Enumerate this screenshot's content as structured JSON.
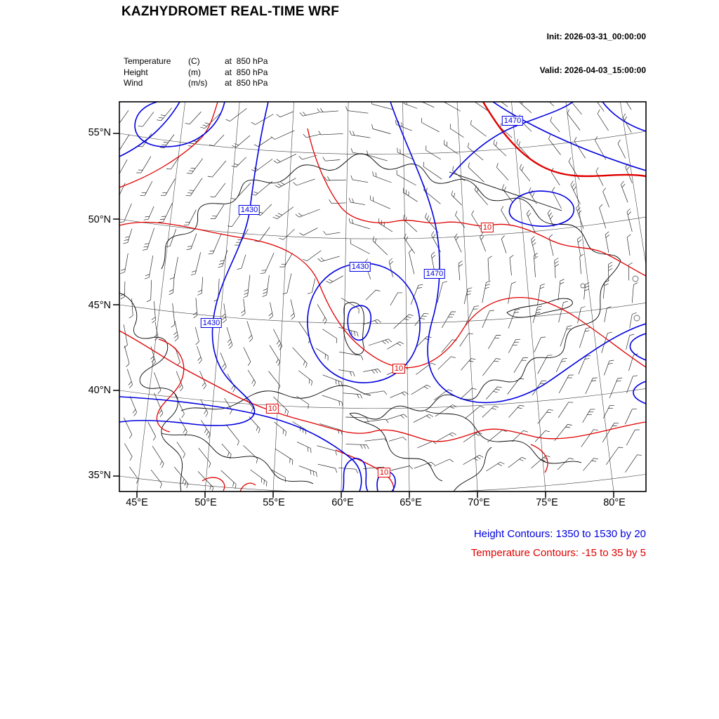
{
  "header": {
    "title": "KAZHYDROMET REAL-TIME WRF",
    "init": "Init: 2026-03-31_00:00:00",
    "valid": "Valid: 2026-04-03_15:00:00"
  },
  "legend": {
    "rows": [
      {
        "field": "Temperature",
        "unit": "(C)",
        "level": "at  850 hPa"
      },
      {
        "field": "Height",
        "unit": "(m)",
        "level": "at  850 hPa"
      },
      {
        "field": "Wind",
        "unit": "(m/s)",
        "level": "at  850 hPa"
      }
    ]
  },
  "axes": {
    "lat": [
      "55°N",
      "50°N",
      "45°N",
      "40°N",
      "35°N"
    ],
    "lon": [
      "45°E",
      "50°E",
      "55°E",
      "60°E",
      "65°E",
      "70°E",
      "75°E",
      "80°E"
    ]
  },
  "contour_labels": {
    "height": [
      {
        "text": "1470"
      },
      {
        "text": "1430"
      },
      {
        "text": "1430"
      },
      {
        "text": "1470"
      },
      {
        "text": "1430"
      }
    ],
    "temperature": [
      {
        "text": "10"
      },
      {
        "text": "10"
      },
      {
        "text": "10"
      },
      {
        "text": "10"
      }
    ]
  },
  "footer": {
    "height_contours": "Height Contours: 1350 to 1530 by 20",
    "temperature_contours": "Temperature Contours: -15 to 35 by 5"
  },
  "map_info": {
    "level": "850 hPa",
    "height_contour_range": "1350 to 1530 by 20",
    "temperature_contour_range": "-15 to 35 by 5",
    "colors": {
      "height_contour": "#0000e0",
      "temperature_contour": "#e00000",
      "graticule": "#444444",
      "borders": "#000000",
      "wind_barbs": "#1a1a1a"
    }
  }
}
